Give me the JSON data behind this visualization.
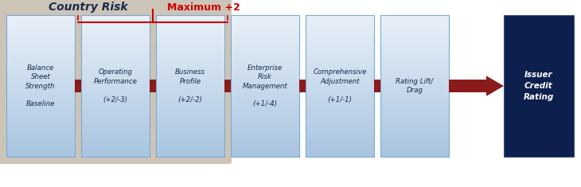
{
  "bg_color": "#ffffff",
  "country_risk_bg": "#cdc4b8",
  "box_top_color": "#e8f0f8",
  "box_bottom_color": "#a8c4e0",
  "dark_box_color": "#0d1f4c",
  "dark_box_border": "#3a5080",
  "connector_color": "#8b1a1a",
  "brace_color": "#cc0000",
  "max_label_color": "#cc0000",
  "box_border_color": "#7aaad0",
  "country_risk_label_color": "#1a2a4a",
  "box_text_color": "#1a2a4a",
  "country_risk_text": "Country Risk",
  "max_label": "Maximum +2",
  "box_labels": [
    "Balance\nSheet\nStrength\n\nBaseline",
    "Operating\nPerformance\n\n(+2/-3)",
    "Business\nProfile\n\n(+2/-2)",
    "Enterprise\nRisk\nManagement\n\n(+1/-4)",
    "Comprehensive\nAdjustment\n\n(+1/-1)",
    "Rating Lift/\nDrag"
  ],
  "final_box_label": "Issuer\nCredit\nRating",
  "figw": 7.3,
  "figh": 2.35,
  "dpi": 100
}
